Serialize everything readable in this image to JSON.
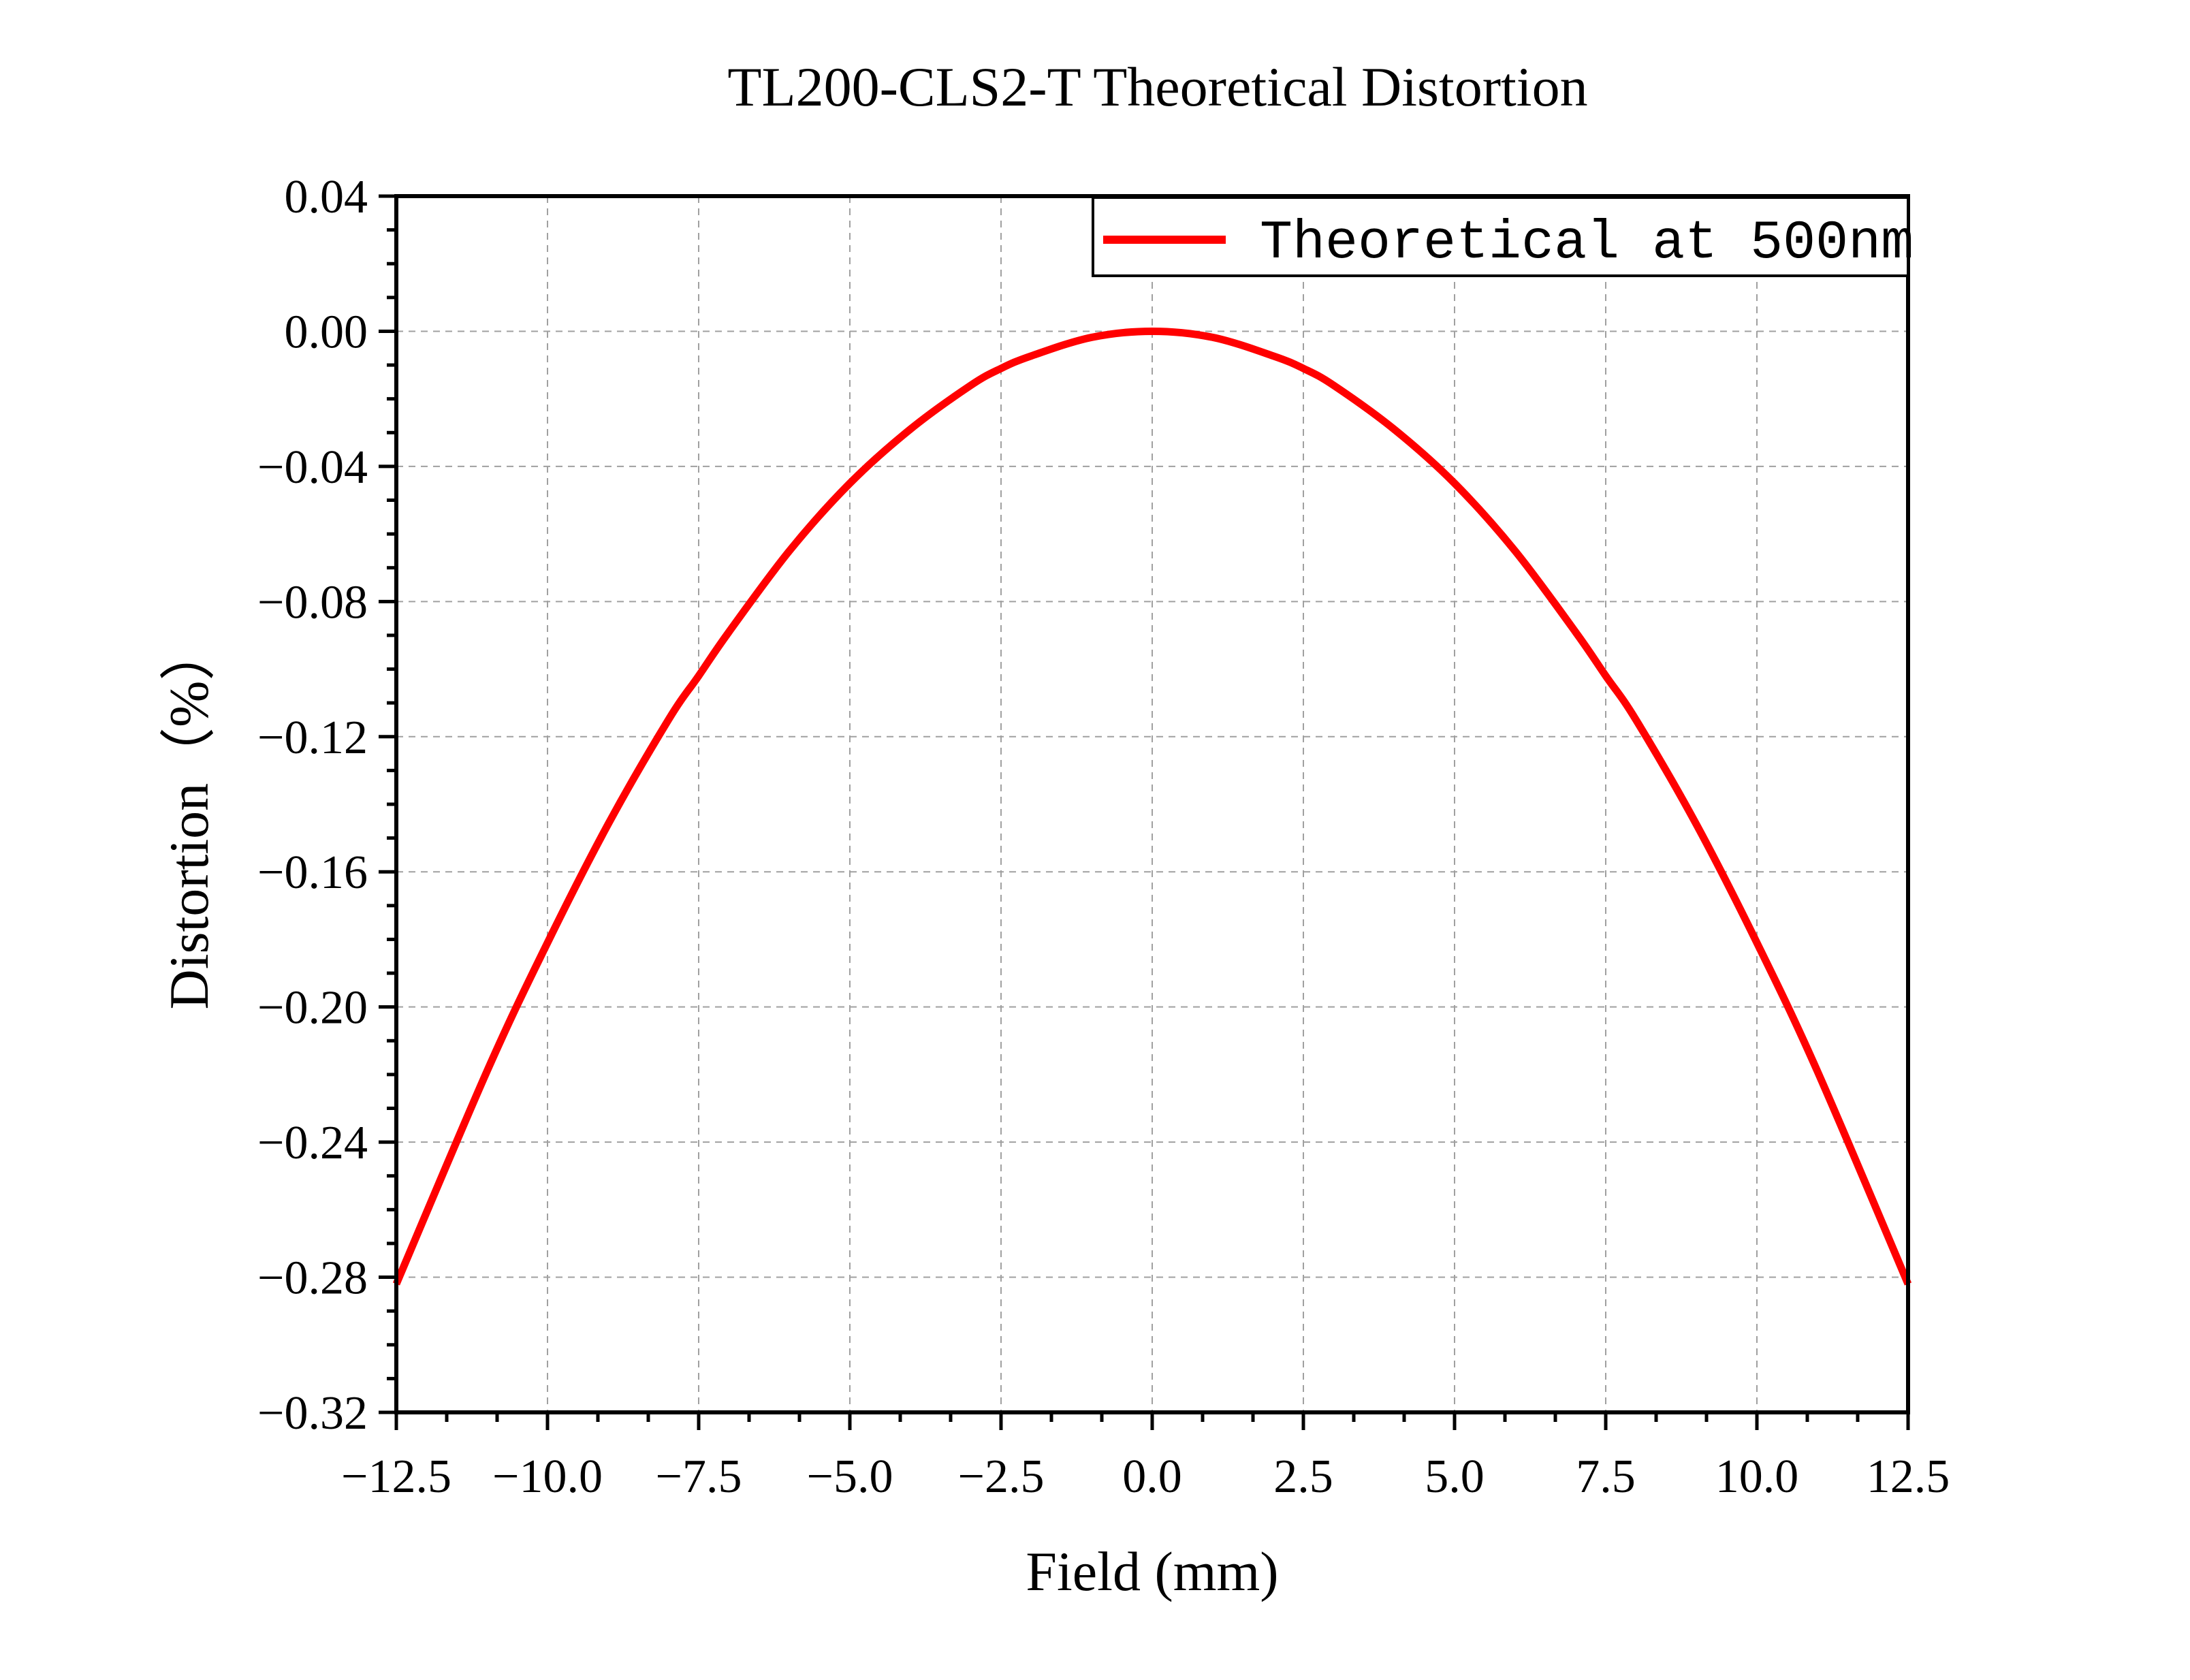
{
  "chart_data": {
    "type": "line",
    "title": "TL200-CLS2-T Theoretical Distortion",
    "xlabel": "Field (mm)",
    "ylabel": "Distortion（%）",
    "xlim": [
      -12.5,
      12.5
    ],
    "ylim": [
      -0.32,
      0.04
    ],
    "x_ticks": [
      -12.5,
      -10.0,
      -7.5,
      -5.0,
      -2.5,
      0.0,
      2.5,
      5.0,
      7.5,
      10.0,
      12.5
    ],
    "x_tick_labels": [
      "−12.5",
      "−10.0",
      "−7.5",
      "−5.0",
      "−2.5",
      "0.0",
      "2.5",
      "5.0",
      "7.5",
      "10.0",
      "12.5"
    ],
    "y_ticks": [
      0.04,
      0.0,
      -0.04,
      -0.08,
      -0.12,
      -0.16,
      -0.2,
      -0.24,
      -0.28,
      -0.32
    ],
    "y_tick_labels": [
      "0.04",
      "0.00",
      "−0.04",
      "−0.08",
      "−0.12",
      "−0.16",
      "−0.20",
      "−0.24",
      "−0.28",
      "−0.32"
    ],
    "grid": true,
    "legend_position": "top-right",
    "series": [
      {
        "name": "Theoretical at 500nm",
        "color": "#ff0000",
        "x": [
          -12.5,
          -11.0,
          -10.0,
          -9.0,
          -8.0,
          -7.5,
          -7.0,
          -6.0,
          -5.0,
          -4.0,
          -3.0,
          -2.5,
          -2.0,
          -1.0,
          0.0,
          1.0,
          2.0,
          2.5,
          3.0,
          4.0,
          5.0,
          6.0,
          7.0,
          7.5,
          8.0,
          9.0,
          10.0,
          11.0,
          12.5
        ],
        "y": [
          -0.282,
          -0.219,
          -0.181,
          -0.146,
          -0.115,
          -0.102,
          -0.089,
          -0.065,
          -0.045,
          -0.029,
          -0.016,
          -0.011,
          -0.0073,
          -0.0018,
          0.0,
          -0.0018,
          -0.0073,
          -0.011,
          -0.016,
          -0.029,
          -0.045,
          -0.065,
          -0.089,
          -0.102,
          -0.115,
          -0.146,
          -0.181,
          -0.219,
          -0.282
        ]
      }
    ]
  }
}
